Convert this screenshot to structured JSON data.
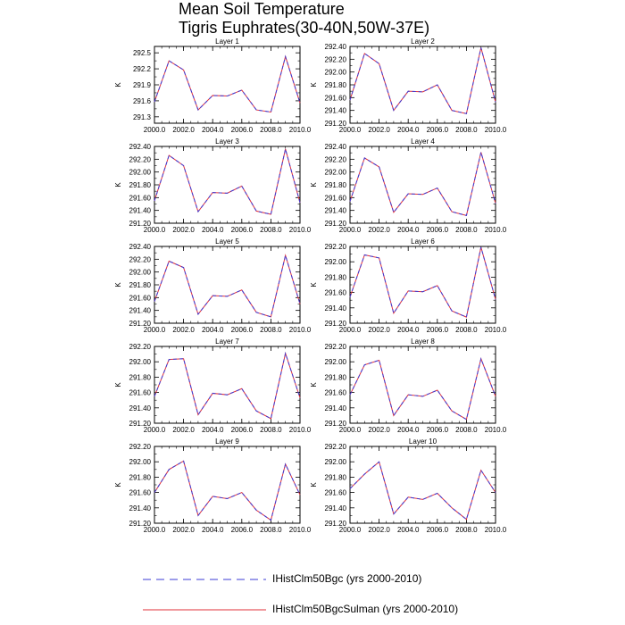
{
  "title": {
    "line1": "Mean Soil Temperature",
    "line2": "Tigris Euphrates(30-40N,50W-37E)"
  },
  "colors": {
    "series_bgc": "#3b3bd6",
    "series_sulman": "#e0303a",
    "axis": "#000000"
  },
  "legend": {
    "entries": [
      {
        "label": "IHistClm50Bgc (yrs 2000-2010)",
        "color": "#3b3bd6",
        "style": "dashed"
      },
      {
        "label": "IHistClm50BgcSulman (yrs 2000-2010)",
        "color": "#e0303a",
        "style": "solid"
      }
    ]
  },
  "chart_data": [
    {
      "type": "line",
      "title": "Layer 1",
      "ylabel": "K",
      "x": [
        2000,
        2001,
        2002,
        2003,
        2004,
        2005,
        2006,
        2007,
        2008,
        2009,
        2010
      ],
      "xticks": [
        "2000.0",
        "2002.0",
        "2004.0",
        "2006.0",
        "2008.0",
        "2010.0"
      ],
      "xlim": [
        2000,
        2010
      ],
      "ylim": [
        291.18,
        292.62
      ],
      "yticks": [
        "291.3",
        "291.6",
        "291.9",
        "292.2",
        "292.5"
      ],
      "series": [
        {
          "name": "IHistClm50Bgc (yrs 2000-2010)",
          "values": [
            291.58,
            292.35,
            292.18,
            291.43,
            291.7,
            291.69,
            291.8,
            291.43,
            291.39,
            292.43,
            291.56
          ]
        },
        {
          "name": "IHistClm50BgcSulman (yrs 2000-2010)",
          "values": [
            291.58,
            292.35,
            292.18,
            291.43,
            291.7,
            291.69,
            291.8,
            291.43,
            291.39,
            292.43,
            291.56
          ]
        }
      ]
    },
    {
      "type": "line",
      "title": "Layer 2",
      "ylabel": "K",
      "x": [
        2000,
        2001,
        2002,
        2003,
        2004,
        2005,
        2006,
        2007,
        2008,
        2009,
        2010
      ],
      "xticks": [
        "2000.0",
        "2002.0",
        "2004.0",
        "2006.0",
        "2008.0",
        "2010.0"
      ],
      "xlim": [
        2000,
        2010
      ],
      "ylim": [
        291.2,
        292.4
      ],
      "yticks": [
        "291.20",
        "291.40",
        "291.60",
        "291.80",
        "292.00",
        "292.20",
        "292.40"
      ],
      "series": [
        {
          "name": "IHistClm50Bgc (yrs 2000-2010)",
          "values": [
            291.56,
            292.29,
            292.13,
            291.4,
            291.7,
            291.69,
            291.8,
            291.4,
            291.35,
            292.38,
            291.53
          ]
        },
        {
          "name": "IHistClm50BgcSulman (yrs 2000-2010)",
          "values": [
            291.56,
            292.29,
            292.13,
            291.4,
            291.7,
            291.69,
            291.8,
            291.4,
            291.35,
            292.38,
            291.53
          ]
        }
      ]
    },
    {
      "type": "line",
      "title": "Layer 3",
      "ylabel": "K",
      "x": [
        2000,
        2001,
        2002,
        2003,
        2004,
        2005,
        2006,
        2007,
        2008,
        2009,
        2010
      ],
      "xticks": [
        "2000.0",
        "2002.0",
        "2004.0",
        "2006.0",
        "2008.0",
        "2010.0"
      ],
      "xlim": [
        2000,
        2010
      ],
      "ylim": [
        291.2,
        292.4
      ],
      "yticks": [
        "291.20",
        "291.40",
        "291.60",
        "291.80",
        "292.00",
        "292.20",
        "292.40"
      ],
      "series": [
        {
          "name": "IHistClm50Bgc (yrs 2000-2010)",
          "values": [
            291.55,
            292.26,
            292.1,
            291.38,
            291.68,
            291.67,
            291.78,
            291.39,
            291.34,
            292.36,
            291.52
          ]
        },
        {
          "name": "IHistClm50BgcSulman (yrs 2000-2010)",
          "values": [
            291.55,
            292.26,
            292.1,
            291.38,
            291.68,
            291.67,
            291.78,
            291.39,
            291.34,
            292.36,
            291.52
          ]
        }
      ]
    },
    {
      "type": "line",
      "title": "Layer 4",
      "ylabel": "K",
      "x": [
        2000,
        2001,
        2002,
        2003,
        2004,
        2005,
        2006,
        2007,
        2008,
        2009,
        2010
      ],
      "xticks": [
        "2000.0",
        "2002.0",
        "2004.0",
        "2006.0",
        "2008.0",
        "2010.0"
      ],
      "xlim": [
        2000,
        2010
      ],
      "ylim": [
        291.2,
        292.4
      ],
      "yticks": [
        "291.20",
        "291.40",
        "291.60",
        "291.80",
        "292.00",
        "292.20",
        "292.40"
      ],
      "series": [
        {
          "name": "IHistClm50Bgc (yrs 2000-2010)",
          "values": [
            291.54,
            292.22,
            292.08,
            291.37,
            291.66,
            291.65,
            291.75,
            291.38,
            291.32,
            292.31,
            291.51
          ]
        },
        {
          "name": "IHistClm50BgcSulman (yrs 2000-2010)",
          "values": [
            291.54,
            292.22,
            292.08,
            291.37,
            291.66,
            291.65,
            291.75,
            291.38,
            291.32,
            292.31,
            291.51
          ]
        }
      ]
    },
    {
      "type": "line",
      "title": "Layer 5",
      "ylabel": "K",
      "x": [
        2000,
        2001,
        2002,
        2003,
        2004,
        2005,
        2006,
        2007,
        2008,
        2009,
        2010
      ],
      "xticks": [
        "2000.0",
        "2002.0",
        "2004.0",
        "2006.0",
        "2008.0",
        "2010.0"
      ],
      "xlim": [
        2000,
        2010
      ],
      "ylim": [
        291.2,
        292.4
      ],
      "yticks": [
        "291.20",
        "291.40",
        "291.60",
        "291.80",
        "292.00",
        "292.20",
        "292.40"
      ],
      "series": [
        {
          "name": "IHistClm50Bgc (yrs 2000-2010)",
          "values": [
            291.54,
            292.17,
            292.07,
            291.34,
            291.63,
            291.62,
            291.72,
            291.37,
            291.3,
            292.26,
            291.5
          ]
        },
        {
          "name": "IHistClm50BgcSulman (yrs 2000-2010)",
          "values": [
            291.54,
            292.17,
            292.07,
            291.34,
            291.63,
            291.62,
            291.72,
            291.37,
            291.3,
            292.26,
            291.5
          ]
        }
      ]
    },
    {
      "type": "line",
      "title": "Layer 6",
      "ylabel": "K",
      "x": [
        2000,
        2001,
        2002,
        2003,
        2004,
        2005,
        2006,
        2007,
        2008,
        2009,
        2010
      ],
      "xticks": [
        "2000.0",
        "2002.0",
        "2004.0",
        "2006.0",
        "2008.0",
        "2010.0"
      ],
      "xlim": [
        2000,
        2010
      ],
      "ylim": [
        291.2,
        292.2
      ],
      "yticks": [
        "291.20",
        "291.40",
        "291.60",
        "291.80",
        "292.00",
        "292.20"
      ],
      "series": [
        {
          "name": "IHistClm50Bgc (yrs 2000-2010)",
          "values": [
            291.54,
            292.09,
            292.05,
            291.33,
            291.62,
            291.61,
            291.69,
            291.36,
            291.28,
            292.19,
            291.51
          ]
        },
        {
          "name": "IHistClm50BgcSulman (yrs 2000-2010)",
          "values": [
            291.54,
            292.09,
            292.05,
            291.33,
            291.62,
            291.61,
            291.69,
            291.36,
            291.28,
            292.19,
            291.51
          ]
        }
      ]
    },
    {
      "type": "line",
      "title": "Layer 7",
      "ylabel": "K",
      "x": [
        2000,
        2001,
        2002,
        2003,
        2004,
        2005,
        2006,
        2007,
        2008,
        2009,
        2010
      ],
      "xticks": [
        "2000.0",
        "2002.0",
        "2004.0",
        "2006.0",
        "2008.0",
        "2010.0"
      ],
      "xlim": [
        2000,
        2010
      ],
      "ylim": [
        291.2,
        292.2
      ],
      "yticks": [
        "291.20",
        "291.40",
        "291.60",
        "291.80",
        "292.00",
        "292.20"
      ],
      "series": [
        {
          "name": "IHistClm50Bgc (yrs 2000-2010)",
          "values": [
            291.55,
            292.03,
            292.04,
            291.31,
            291.59,
            291.57,
            291.65,
            291.36,
            291.26,
            292.11,
            291.53
          ]
        },
        {
          "name": "IHistClm50BgcSulman (yrs 2000-2010)",
          "values": [
            291.55,
            292.03,
            292.04,
            291.31,
            291.59,
            291.57,
            291.65,
            291.36,
            291.26,
            292.11,
            291.53
          ]
        }
      ]
    },
    {
      "type": "line",
      "title": "Layer 8",
      "ylabel": "K",
      "x": [
        2000,
        2001,
        2002,
        2003,
        2004,
        2005,
        2006,
        2007,
        2008,
        2009,
        2010
      ],
      "xticks": [
        "2000.0",
        "2002.0",
        "2004.0",
        "2006.0",
        "2008.0",
        "2010.0"
      ],
      "xlim": [
        2000,
        2010
      ],
      "ylim": [
        291.2,
        292.2
      ],
      "yticks": [
        "291.20",
        "291.40",
        "291.60",
        "291.80",
        "292.00",
        "292.20"
      ],
      "series": [
        {
          "name": "IHistClm50Bgc (yrs 2000-2010)",
          "values": [
            291.57,
            291.96,
            292.02,
            291.3,
            291.57,
            291.55,
            291.63,
            291.36,
            291.25,
            292.04,
            291.55
          ]
        },
        {
          "name": "IHistClm50BgcSulman (yrs 2000-2010)",
          "values": [
            291.57,
            291.96,
            292.02,
            291.3,
            291.57,
            291.55,
            291.63,
            291.36,
            291.25,
            292.04,
            291.55
          ]
        }
      ]
    },
    {
      "type": "line",
      "title": "Layer 9",
      "ylabel": "K",
      "x": [
        2000,
        2001,
        2002,
        2003,
        2004,
        2005,
        2006,
        2007,
        2008,
        2009,
        2010
      ],
      "xticks": [
        "2000.0",
        "2002.0",
        "2004.0",
        "2006.0",
        "2008.0",
        "2010.0"
      ],
      "xlim": [
        2000,
        2010
      ],
      "ylim": [
        291.2,
        292.2
      ],
      "yticks": [
        "291.20",
        "291.40",
        "291.60",
        "291.80",
        "292.00",
        "292.20"
      ],
      "series": [
        {
          "name": "IHistClm50Bgc (yrs 2000-2010)",
          "values": [
            291.6,
            291.9,
            292.01,
            291.3,
            291.55,
            291.52,
            291.6,
            291.37,
            291.24,
            291.97,
            291.57
          ]
        },
        {
          "name": "IHistClm50BgcSulman (yrs 2000-2010)",
          "values": [
            291.6,
            291.9,
            292.01,
            291.3,
            291.55,
            291.52,
            291.6,
            291.37,
            291.24,
            291.97,
            291.57
          ]
        }
      ]
    },
    {
      "type": "line",
      "title": "Layer 10",
      "ylabel": "K",
      "x": [
        2000,
        2001,
        2002,
        2003,
        2004,
        2005,
        2006,
        2007,
        2008,
        2009,
        2010
      ],
      "xticks": [
        "2000.0",
        "2002.0",
        "2004.0",
        "2006.0",
        "2008.0",
        "2010.0"
      ],
      "xlim": [
        2000,
        2010
      ],
      "ylim": [
        291.2,
        292.2
      ],
      "yticks": [
        "291.20",
        "291.40",
        "291.60",
        "291.80",
        "292.00",
        "292.20"
      ],
      "series": [
        {
          "name": "IHistClm50Bgc (yrs 2000-2010)",
          "values": [
            291.65,
            291.84,
            292.0,
            291.32,
            291.54,
            291.51,
            291.59,
            291.4,
            291.25,
            291.89,
            291.6
          ]
        },
        {
          "name": "IHistClm50BgcSulman (yrs 2000-2010)",
          "values": [
            291.65,
            291.84,
            292.0,
            291.32,
            291.54,
            291.51,
            291.59,
            291.4,
            291.25,
            291.89,
            291.6
          ]
        }
      ]
    }
  ]
}
